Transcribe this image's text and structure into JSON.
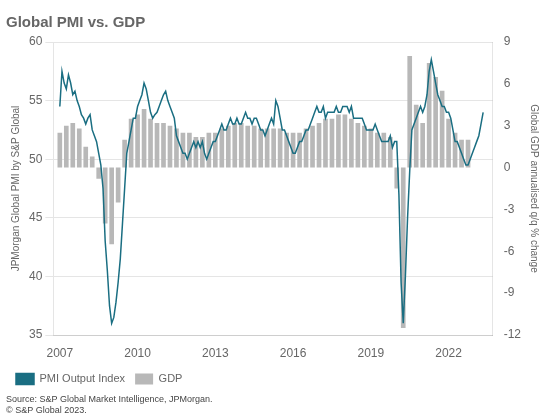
{
  "chart_data": {
    "type": "bar+line",
    "title": "Global PMI vs. GDP",
    "ylabel": "JPMorgan Global PMI by S&P Global",
    "y2label": "Global GDP annualised q/q % change",
    "annotations": [
      "Source: S&P Global Market Intelligence, JPMorgan.\n© S&P Global 2023."
    ],
    "xlim": [
      2006.75,
      2023.7
    ],
    "xticks": [
      2007,
      2010,
      2013,
      2016,
      2019,
      2022
    ],
    "ylim": [
      35,
      60
    ],
    "yticks": [
      35,
      40,
      45,
      50,
      55,
      60
    ],
    "y2lim": [
      -12,
      9
    ],
    "y2ticks": [
      -12,
      -9,
      -6,
      -3,
      0,
      3,
      6,
      9
    ],
    "grid": true,
    "legend": "lower left",
    "series": [
      {
        "name": "GDP",
        "type": "bar",
        "color": "#b8b8b8",
        "axis": "y2",
        "x": [
          2007.0,
          2007.25,
          2007.5,
          2007.75,
          2008.0,
          2008.25,
          2008.5,
          2008.75,
          2009.0,
          2009.25,
          2009.5,
          2009.75,
          2010.0,
          2010.25,
          2010.5,
          2010.75,
          2011.0,
          2011.25,
          2011.5,
          2011.75,
          2012.0,
          2012.25,
          2012.5,
          2012.75,
          2013.0,
          2013.25,
          2013.5,
          2013.75,
          2014.0,
          2014.25,
          2014.5,
          2014.75,
          2015.0,
          2015.25,
          2015.5,
          2015.75,
          2016.0,
          2016.25,
          2016.5,
          2016.75,
          2017.0,
          2017.25,
          2017.5,
          2017.75,
          2018.0,
          2018.25,
          2018.5,
          2018.75,
          2019.0,
          2019.25,
          2019.5,
          2019.75,
          2020.0,
          2020.25,
          2020.5,
          2020.75,
          2021.0,
          2021.25,
          2021.5,
          2021.75,
          2022.0,
          2022.25,
          2022.5,
          2022.75
        ],
        "values": [
          2.5,
          3.0,
          3.2,
          2.8,
          1.5,
          0.8,
          -0.8,
          -4.0,
          -5.5,
          -2.5,
          2.0,
          3.5,
          3.8,
          4.2,
          3.5,
          3.2,
          3.2,
          3.0,
          2.8,
          2.5,
          2.5,
          2.2,
          2.2,
          2.5,
          2.5,
          2.8,
          3.0,
          3.2,
          3.2,
          3.0,
          3.0,
          2.8,
          2.8,
          2.8,
          2.8,
          2.5,
          2.5,
          2.5,
          2.8,
          3.0,
          3.2,
          3.5,
          3.5,
          3.8,
          3.8,
          3.5,
          3.2,
          3.0,
          2.8,
          2.5,
          2.5,
          2.2,
          -1.5,
          -11.5,
          8.0,
          4.5,
          3.2,
          7.5,
          6.5,
          5.5,
          3.5,
          2.5,
          2.0,
          2.0
        ]
      },
      {
        "name": "PMI Output Index",
        "type": "line",
        "color": "#1a6e82",
        "x": [
          2007.0,
          2007.083,
          2007.167,
          2007.25,
          2007.333,
          2007.417,
          2007.5,
          2007.583,
          2007.667,
          2007.75,
          2007.833,
          2007.917,
          2008.0,
          2008.083,
          2008.167,
          2008.25,
          2008.333,
          2008.417,
          2008.5,
          2008.583,
          2008.667,
          2008.75,
          2008.833,
          2008.917,
          2009.0,
          2009.083,
          2009.167,
          2009.25,
          2009.333,
          2009.417,
          2009.5,
          2009.583,
          2009.667,
          2009.75,
          2009.833,
          2009.917,
          2010.0,
          2010.083,
          2010.167,
          2010.25,
          2010.333,
          2010.417,
          2010.5,
          2010.583,
          2010.667,
          2010.75,
          2010.833,
          2010.917,
          2011.0,
          2011.083,
          2011.167,
          2011.25,
          2011.333,
          2011.417,
          2011.5,
          2011.583,
          2011.667,
          2011.75,
          2011.833,
          2011.917,
          2012.0,
          2012.083,
          2012.167,
          2012.25,
          2012.333,
          2012.417,
          2012.5,
          2012.583,
          2012.667,
          2012.75,
          2012.833,
          2012.917,
          2013.0,
          2013.083,
          2013.167,
          2013.25,
          2013.333,
          2013.417,
          2013.5,
          2013.583,
          2013.667,
          2013.75,
          2013.833,
          2013.917,
          2014.0,
          2014.083,
          2014.167,
          2014.25,
          2014.333,
          2014.417,
          2014.5,
          2014.583,
          2014.667,
          2014.75,
          2014.833,
          2014.917,
          2015.0,
          2015.083,
          2015.167,
          2015.25,
          2015.333,
          2015.417,
          2015.5,
          2015.583,
          2015.667,
          2015.75,
          2015.833,
          2015.917,
          2016.0,
          2016.083,
          2016.167,
          2016.25,
          2016.333,
          2016.417,
          2016.5,
          2016.583,
          2016.667,
          2016.75,
          2016.833,
          2016.917,
          2017.0,
          2017.083,
          2017.167,
          2017.25,
          2017.333,
          2017.417,
          2017.5,
          2017.583,
          2017.667,
          2017.75,
          2017.833,
          2017.917,
          2018.0,
          2018.083,
          2018.167,
          2018.25,
          2018.333,
          2018.417,
          2018.5,
          2018.583,
          2018.667,
          2018.75,
          2018.833,
          2018.917,
          2019.0,
          2019.083,
          2019.167,
          2019.25,
          2019.333,
          2019.417,
          2019.5,
          2019.583,
          2019.667,
          2019.75,
          2019.833,
          2019.917,
          2020.0,
          2020.083,
          2020.167,
          2020.25,
          2020.333,
          2020.417,
          2020.5,
          2020.583,
          2020.667,
          2020.75,
          2020.833,
          2020.917,
          2021.0,
          2021.083,
          2021.167,
          2021.25,
          2021.333,
          2021.417,
          2021.5,
          2021.583,
          2021.667,
          2021.75,
          2021.833,
          2021.917,
          2022.0,
          2022.083,
          2022.167,
          2022.25,
          2022.333,
          2022.417,
          2022.5,
          2022.583,
          2022.667,
          2022.75,
          2022.833,
          2022.917,
          2023.0,
          2023.083,
          2023.167,
          2023.25,
          2023.333
        ],
        "values": [
          54.5,
          57.5,
          56.5,
          56.0,
          57.2,
          56.5,
          55.5,
          55.8,
          55.0,
          54.5,
          53.8,
          53.5,
          53.0,
          53.5,
          53.8,
          52.5,
          52.0,
          51.5,
          50.5,
          49.5,
          47.5,
          43.0,
          40.5,
          37.5,
          36.0,
          36.5,
          37.8,
          39.5,
          41.5,
          44.5,
          47.5,
          50.5,
          51.5,
          52.5,
          53.5,
          53.5,
          54.5,
          55.0,
          55.5,
          56.5,
          56.0,
          55.0,
          54.0,
          53.5,
          53.8,
          54.0,
          54.5,
          55.0,
          55.5,
          55.8,
          55.0,
          54.5,
          54.0,
          53.5,
          52.0,
          51.5,
          51.0,
          50.5,
          50.5,
          50.0,
          50.5,
          51.0,
          51.5,
          51.0,
          51.5,
          51.0,
          51.5,
          50.5,
          50.0,
          50.5,
          51.0,
          51.5,
          51.5,
          52.0,
          52.5,
          53.0,
          52.5,
          52.5,
          53.0,
          53.5,
          53.0,
          53.0,
          53.5,
          53.0,
          53.0,
          53.5,
          54.0,
          53.5,
          53.5,
          53.0,
          53.5,
          53.5,
          53.0,
          52.5,
          52.5,
          52.0,
          52.5,
          53.0,
          53.5,
          53.0,
          55.0,
          54.5,
          53.5,
          52.5,
          52.5,
          52.0,
          51.5,
          51.0,
          50.5,
          50.5,
          51.0,
          51.5,
          51.5,
          52.0,
          52.5,
          52.5,
          53.0,
          53.5,
          54.0,
          54.5,
          54.0,
          54.0,
          54.5,
          53.5,
          54.0,
          54.0,
          54.0,
          54.0,
          54.5,
          54.0,
          54.0,
          54.5,
          54.5,
          54.5,
          54.0,
          54.5,
          53.5,
          53.5,
          53.5,
          53.5,
          53.5,
          53.0,
          52.5,
          52.5,
          52.5,
          52.5,
          53.0,
          52.5,
          52.0,
          51.5,
          51.5,
          51.5,
          51.5,
          52.0,
          51.0,
          51.5,
          51.5,
          47.0,
          39.5,
          36.0,
          40.0,
          45.0,
          49.0,
          52.5,
          53.0,
          53.5,
          54.0,
          54.5,
          54.0,
          54.5,
          55.5,
          57.5,
          58.5,
          57.5,
          56.5,
          55.5,
          55.0,
          54.5,
          54.5,
          54.0,
          54.0,
          53.5,
          52.5,
          51.5,
          51.5,
          51.0,
          50.5,
          50.0,
          49.5,
          49.5,
          50.0,
          50.5,
          51.0,
          51.5,
          52.0,
          53.0,
          54.0
        ]
      }
    ]
  }
}
